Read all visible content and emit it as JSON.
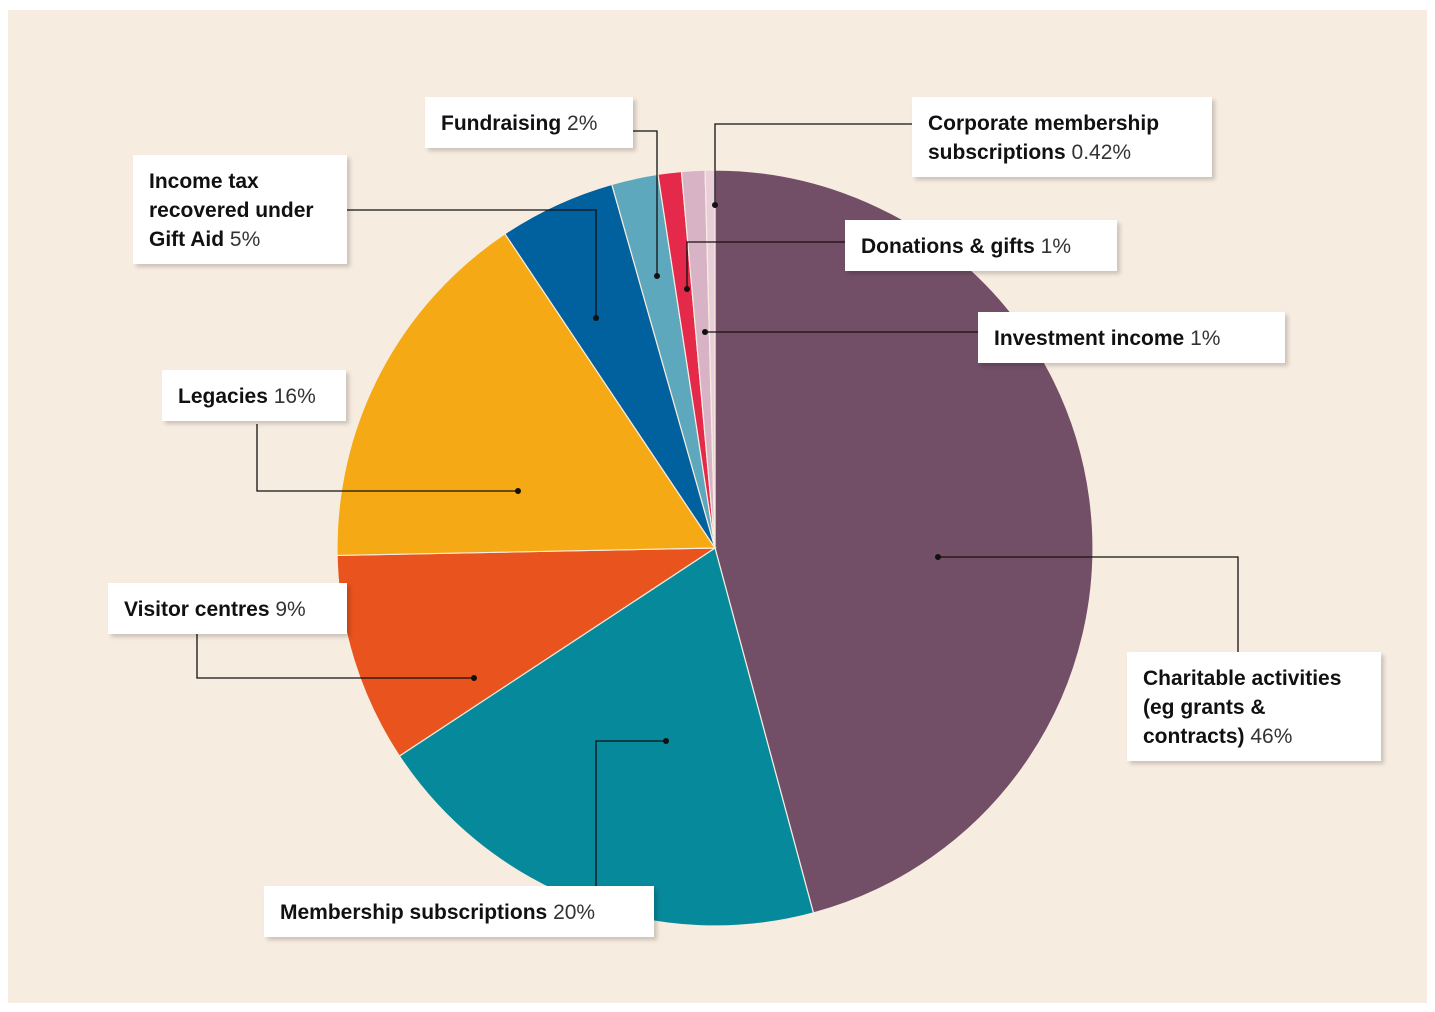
{
  "chart_data": {
    "type": "pie",
    "categories": [
      "Charitable activities (eg grants & contracts)",
      "Membership subscriptions",
      "Visitor centres",
      "Legacies",
      "Income tax recovered under Gift Aid",
      "Fundraising",
      "Donations & gifts",
      "Investment income",
      "Corporate membership subscriptions"
    ],
    "values": [
      46,
      20,
      9,
      16,
      5,
      2,
      1,
      1,
      0.42
    ],
    "value_labels": [
      "46%",
      "20%",
      "9%",
      "16%",
      "5%",
      "2%",
      "1%",
      "1%",
      "0.42%"
    ],
    "colors": [
      "#724f67",
      "#07899c",
      "#e8531e",
      "#f5a914",
      "#01609e",
      "#5ea8bd",
      "#e4294b",
      "#d7b3c5",
      "#e9cfd9"
    ]
  }
}
